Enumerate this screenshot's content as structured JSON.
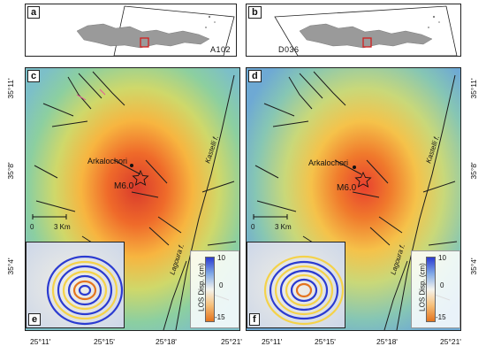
{
  "panels": {
    "a": {
      "label": "a",
      "track": "A102"
    },
    "b": {
      "label": "b",
      "track": "D036"
    },
    "c": {
      "label": "c"
    },
    "d": {
      "label": "d"
    },
    "e": {
      "label": "e"
    },
    "f": {
      "label": "f"
    }
  },
  "map": {
    "village": "Arkalochori",
    "event": "M6.0",
    "scale_start": "0",
    "scale_end": "3 Km",
    "fault_kastelli": "Kastelli f.",
    "fault_lagoura": "Lagoura f."
  },
  "axes": {
    "lat_ticks": [
      "35°11'",
      "35°8'",
      "35°4'"
    ],
    "lon_ticks": [
      "25°11'",
      "25°15'",
      "25°18'",
      "25°21'"
    ]
  },
  "colorbar": {
    "title": "LOS Disp. (cm)",
    "ticks": [
      "10",
      "0",
      "-15"
    ],
    "colors": {
      "top": "#2b3bd1",
      "mid": "#f4f4ee",
      "bottom": "#e4741e"
    }
  }
}
